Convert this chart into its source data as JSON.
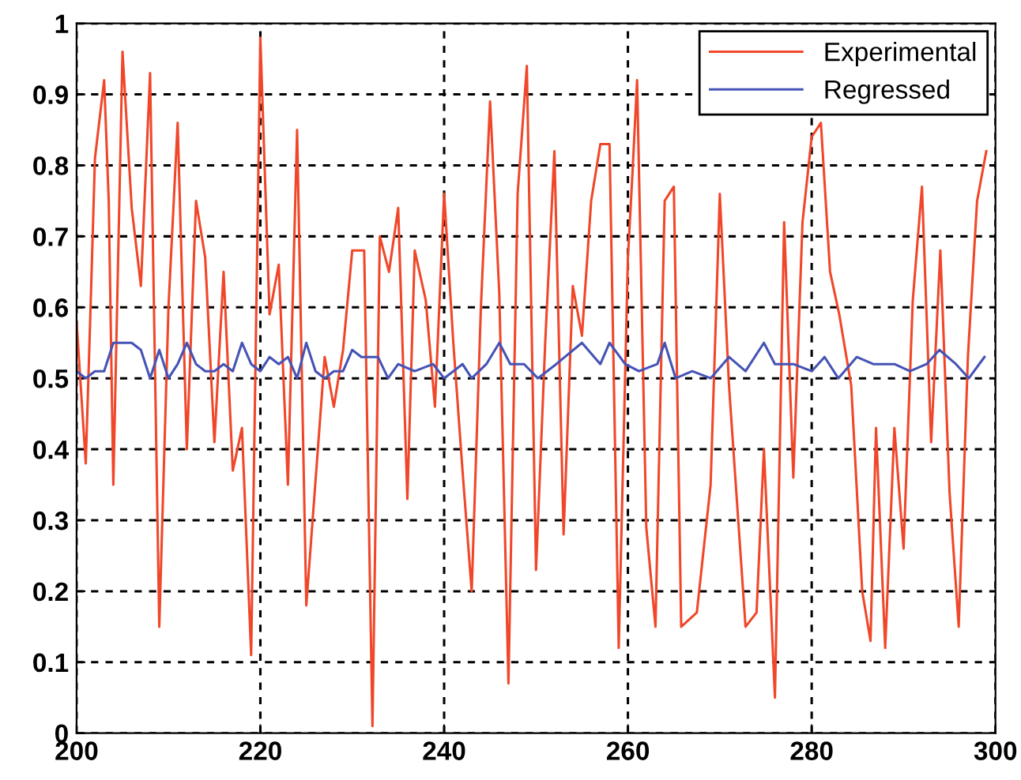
{
  "chart_data": {
    "type": "line",
    "legend": "top right",
    "grid": true,
    "line_style": "solid",
    "marker": "none",
    "xlim": [
      200,
      300
    ],
    "ylim": [
      0,
      1
    ],
    "xticks": [
      200,
      220,
      240,
      260,
      280,
      300
    ],
    "yticks": [
      0,
      {
        "value": 0.1,
        "label": "0.1"
      },
      {
        "value": 0.2,
        "label": "0.2"
      },
      {
        "value": 0.3,
        "label": "0.3"
      },
      {
        "value": 0.4,
        "label": "0.4"
      },
      {
        "value": 0.5,
        "label": "0.5"
      },
      {
        "value": 0.6,
        "label": "0.6"
      },
      {
        "value": 0.7,
        "label": "0.7"
      },
      {
        "value": 0.8,
        "label": "0.8"
      },
      {
        "value": 0.9,
        "label": "0.9"
      },
      1
    ],
    "series": [
      {
        "name": "Experimental",
        "color": "#f0472a",
        "x": [
          200,
          201,
          201.5,
          202,
          203,
          203.5,
          204,
          205,
          206,
          207,
          208,
          209,
          210,
          211,
          212,
          213,
          214,
          215,
          216,
          217,
          218,
          219,
          220,
          221,
          222,
          223,
          224,
          225,
          227,
          228,
          229,
          230,
          231.3,
          232.2,
          233,
          234,
          235,
          236,
          236.8,
          238,
          239,
          240,
          241,
          242,
          243,
          244,
          245,
          246,
          247,
          248,
          249,
          250,
          251,
          252,
          253,
          254,
          255,
          256,
          257,
          258,
          259,
          260,
          260.5,
          261,
          262,
          263,
          264,
          265,
          265.8,
          267.5,
          269,
          270,
          271,
          272.8,
          274,
          274.8,
          276,
          277,
          278,
          279,
          280,
          281,
          282,
          283,
          284.3,
          285.5,
          286.4,
          287,
          288,
          289,
          290,
          291,
          292,
          293,
          294,
          295,
          296,
          297,
          298,
          299
        ],
        "values": [
          0.58,
          0.38,
          0.59,
          0.81,
          0.92,
          0.75,
          0.35,
          0.96,
          0.74,
          0.63,
          0.93,
          0.15,
          0.6,
          0.86,
          0.4,
          0.75,
          0.67,
          0.41,
          0.65,
          0.37,
          0.43,
          0.11,
          0.98,
          0.59,
          0.66,
          0.35,
          0.85,
          0.18,
          0.53,
          0.46,
          0.54,
          0.68,
          0.68,
          0.01,
          0.7,
          0.65,
          0.74,
          0.33,
          0.68,
          0.61,
          0.46,
          0.76,
          0.55,
          0.37,
          0.2,
          0.6,
          0.89,
          0.62,
          0.07,
          0.76,
          0.94,
          0.23,
          0.55,
          0.82,
          0.28,
          0.63,
          0.56,
          0.75,
          0.83,
          0.83,
          0.12,
          0.67,
          0.79,
          0.92,
          0.29,
          0.15,
          0.75,
          0.77,
          0.15,
          0.17,
          0.35,
          0.76,
          0.49,
          0.15,
          0.17,
          0.4,
          0.05,
          0.72,
          0.36,
          0.72,
          0.84,
          0.86,
          0.65,
          0.59,
          0.49,
          0.2,
          0.13,
          0.43,
          0.12,
          0.43,
          0.26,
          0.61,
          0.77,
          0.41,
          0.68,
          0.34,
          0.15,
          0.53,
          0.75,
          0.82
        ]
      },
      {
        "name": "Regressed",
        "color": "#4553b5",
        "x": [
          200,
          201,
          202,
          203,
          204,
          205,
          206,
          207,
          208,
          209,
          210,
          211,
          212,
          213,
          214,
          215,
          216,
          217,
          218,
          219,
          220,
          221,
          222,
          223,
          224,
          225,
          226,
          227,
          228,
          229,
          230,
          231,
          232.8,
          233.9,
          235,
          236.8,
          238.8,
          240,
          242,
          243,
          244.6,
          246,
          247.2,
          248.7,
          250.2,
          252.2,
          255,
          257,
          258,
          259.7,
          261.2,
          263.2,
          264,
          265.2,
          267,
          269,
          271,
          272.8,
          274.8,
          276,
          278,
          280,
          281.4,
          282.9,
          284.9,
          286.7,
          289,
          290.7,
          292.5,
          293.9,
          295.7,
          297.1,
          298.8
        ],
        "values": [
          0.51,
          0.5,
          0.51,
          0.51,
          0.55,
          0.55,
          0.55,
          0.54,
          0.5,
          0.54,
          0.5,
          0.52,
          0.55,
          0.52,
          0.51,
          0.51,
          0.52,
          0.51,
          0.55,
          0.52,
          0.51,
          0.53,
          0.52,
          0.53,
          0.5,
          0.55,
          0.51,
          0.5,
          0.51,
          0.51,
          0.54,
          0.53,
          0.53,
          0.5,
          0.52,
          0.51,
          0.52,
          0.5,
          0.52,
          0.5,
          0.52,
          0.55,
          0.52,
          0.52,
          0.5,
          0.52,
          0.55,
          0.52,
          0.55,
          0.52,
          0.51,
          0.52,
          0.55,
          0.5,
          0.51,
          0.5,
          0.53,
          0.51,
          0.55,
          0.52,
          0.52,
          0.51,
          0.53,
          0.5,
          0.53,
          0.52,
          0.52,
          0.51,
          0.52,
          0.54,
          0.52,
          0.5,
          0.53
        ]
      }
    ]
  }
}
